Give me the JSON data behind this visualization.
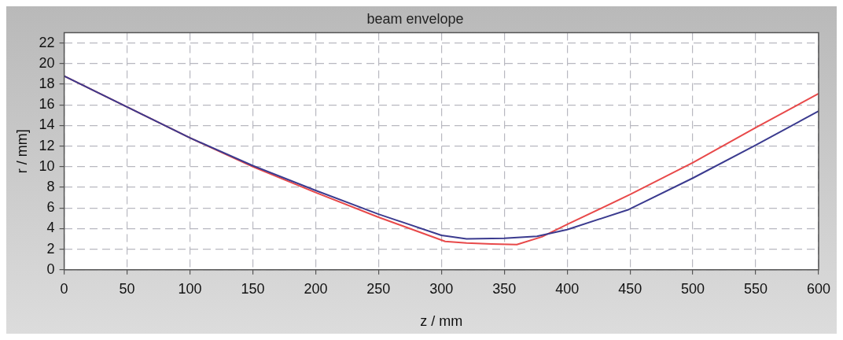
{
  "chart_data": {
    "type": "line",
    "title": "beam envelope",
    "xlabel": "z / mm",
    "ylabel": "r / mm]",
    "xlim": [
      0,
      600
    ],
    "xticks": [
      0,
      50,
      100,
      150,
      200,
      250,
      300,
      350,
      400,
      450,
      500,
      550,
      600
    ],
    "ylim": [
      0,
      23
    ],
    "yticks": [
      0,
      2,
      4,
      6,
      8,
      10,
      12,
      14,
      16,
      18,
      20,
      22
    ],
    "grid": true,
    "legend": false,
    "marker": "none",
    "line_style": "solid",
    "series": [
      {
        "color": "#3b3b8f",
        "x": [
          0,
          50,
          100,
          150,
          200,
          250,
          300,
          320,
          350,
          376,
          400,
          449,
          500,
          550,
          600
        ],
        "values": [
          18.8,
          15.8,
          12.8,
          10.1,
          7.7,
          5.4,
          3.35,
          3.0,
          3.05,
          3.25,
          3.9,
          5.85,
          8.9,
          12.1,
          15.4
        ]
      },
      {
        "color": "#e8494a",
        "x": [
          0,
          50,
          100,
          150,
          200,
          250,
          303,
          320,
          340,
          360,
          380,
          400,
          450,
          500,
          550,
          600
        ],
        "values": [
          18.8,
          15.8,
          12.8,
          10.0,
          7.5,
          5.1,
          2.75,
          2.6,
          2.5,
          2.45,
          3.2,
          4.4,
          7.3,
          10.4,
          13.8,
          17.1
        ]
      }
    ]
  }
}
